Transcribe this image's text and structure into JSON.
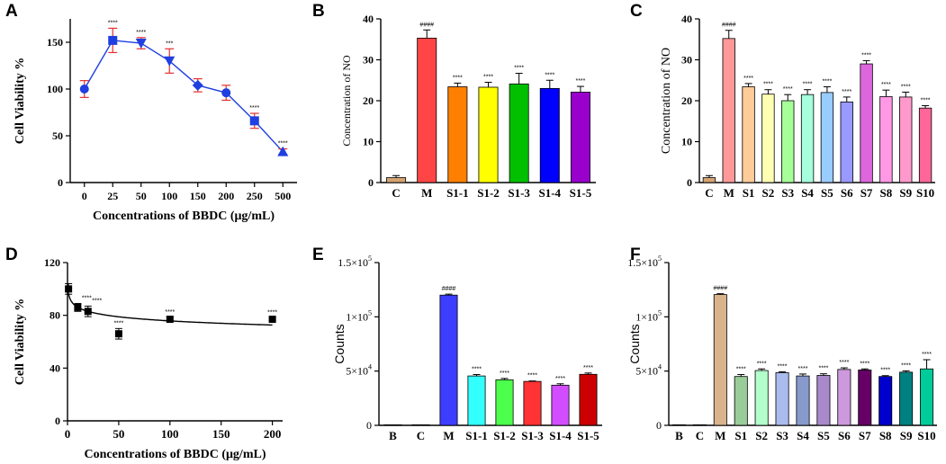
{
  "chart_data": [
    {
      "id": "A",
      "panel_label": "A",
      "type": "line",
      "scale": "categorical",
      "categories": [
        "0",
        "25",
        "50",
        "100",
        "150",
        "200",
        "250",
        "500"
      ],
      "values": [
        100,
        152,
        149,
        130,
        104,
        96,
        66,
        33
      ],
      "errors": [
        9,
        13,
        6,
        13,
        7,
        8,
        8,
        3
      ],
      "markers": [
        "circle",
        "square",
        "triangle-down",
        "triangle-down",
        "diamond",
        "circle",
        "square",
        "triangle-up"
      ],
      "sig": [
        "",
        "****",
        "****",
        "***",
        "",
        "",
        "****",
        "****"
      ],
      "xlabel": "Concentrations of BBDC (μg/mL)",
      "ylabel": "Cell Viability %",
      "ylim": [
        0,
        175
      ],
      "yticks": [
        "0",
        "50",
        "100",
        "150"
      ],
      "ytick_values": [
        0,
        50,
        100,
        150
      ],
      "color": "#1f3fe0",
      "error_color": "#e53030"
    },
    {
      "id": "B",
      "panel_label": "B",
      "type": "bar",
      "categories": [
        "C",
        "M",
        "S1-1",
        "S1-2",
        "S1-3",
        "S1-4",
        "S1-5"
      ],
      "values": [
        1.2,
        35.3,
        23.4,
        23.3,
        24.1,
        23.0,
        22.1
      ],
      "errors": [
        0.5,
        2.0,
        0.9,
        1.2,
        2.6,
        2.0,
        1.4
      ],
      "colors": [
        "#d4a373",
        "#ff4545",
        "#ff8000",
        "#ffff00",
        "#00c000",
        "#0000ff",
        "#9900cc"
      ],
      "labels": [
        "",
        "####",
        "****",
        "****",
        "****",
        "****",
        "****"
      ],
      "ylabel": "Concentration of NO",
      "ylim": [
        0,
        40
      ],
      "yticks": [
        "0",
        "10",
        "20",
        "30",
        "40"
      ],
      "ytick_values": [
        0,
        10,
        20,
        30,
        40
      ]
    },
    {
      "id": "C",
      "panel_label": "C",
      "type": "bar",
      "categories": [
        "C",
        "M",
        "S1",
        "S2",
        "S3",
        "S4",
        "S5",
        "S6",
        "S7",
        "S8",
        "S9",
        "S10"
      ],
      "values": [
        1.2,
        35.2,
        23.4,
        21.6,
        20.0,
        21.5,
        22.0,
        19.7,
        29.0,
        21.0,
        20.9,
        18.2
      ],
      "errors": [
        0.5,
        2.0,
        0.8,
        1.1,
        1.5,
        1.2,
        1.4,
        1.2,
        0.8,
        1.6,
        1.2,
        0.6
      ],
      "colors": [
        "#d4a373",
        "#ff9999",
        "#ffcc99",
        "#ffffb3",
        "#a6ff99",
        "#a6ffdd",
        "#99ccff",
        "#9999ff",
        "#dd66dd",
        "#ff99e6",
        "#ff99cc",
        "#ff6699"
      ],
      "labels": [
        "",
        "####",
        "****",
        "****",
        "****",
        "****",
        "****",
        "****",
        "****",
        "****",
        "****",
        "****"
      ],
      "ylabel": "Concentration of NO",
      "ylim": [
        0,
        40
      ],
      "yticks": [
        "0",
        "10",
        "20",
        "30",
        "40"
      ],
      "ytick_values": [
        0,
        10,
        20,
        30,
        40
      ]
    },
    {
      "id": "D",
      "panel_label": "D",
      "type": "scatter",
      "x": [
        1,
        10,
        20,
        50,
        100,
        200
      ],
      "values": [
        100,
        86,
        83,
        66,
        77,
        77
      ],
      "errors": [
        4,
        3,
        4,
        4,
        1.5,
        1
      ],
      "sig": [
        "",
        "****",
        "****",
        "****",
        "****",
        "****"
      ],
      "fit": {
        "type": "log",
        "a": 96.5,
        "b": -4.5
      },
      "xlabel": "Concentrations of BBDC (μg/mL)",
      "ylabel": "Cell Viability %",
      "xlim": [
        0,
        210
      ],
      "xticks": [
        "0",
        "50",
        "100",
        "150",
        "200"
      ],
      "xtick_values": [
        0,
        50,
        100,
        150,
        200
      ],
      "ylim": [
        0,
        120
      ],
      "yticks": [
        "0",
        "40",
        "80",
        "120"
      ],
      "ytick_values": [
        0,
        40,
        80,
        120
      ]
    },
    {
      "id": "E",
      "panel_label": "E",
      "type": "bar",
      "categories": [
        "B",
        "C",
        "M",
        "S1-1",
        "S1-2",
        "S1-3",
        "S1-4",
        "S1-5"
      ],
      "values": [
        500,
        300,
        120000,
        45500,
        42000,
        40500,
        37000,
        47000
      ],
      "errors": [
        0,
        0,
        900,
        1300,
        1200,
        400,
        1300,
        1200
      ],
      "colors": [
        "#ffffff",
        "#ffffff",
        "#3d3dff",
        "#33ffff",
        "#4dff4d",
        "#ff3333",
        "#d24dff",
        "#cc0000"
      ],
      "labels": [
        "",
        "",
        "####",
        "****",
        "****",
        "****",
        "****",
        "****"
      ],
      "ylabel": "Counts",
      "ylim": [
        0,
        150000
      ],
      "ytick_values": [
        0,
        50000,
        100000,
        150000
      ],
      "ytick_labels": [
        {
          "base": "0",
          "exp": ""
        },
        {
          "base": "5×10",
          "exp": "4"
        },
        {
          "base": "1×10",
          "exp": "5"
        },
        {
          "base": "1.5×10",
          "exp": "5"
        }
      ]
    },
    {
      "id": "F",
      "panel_label": "F",
      "type": "bar",
      "categories": [
        "B",
        "C",
        "M",
        "S1",
        "S2",
        "S3",
        "S4",
        "S5",
        "S6",
        "S7",
        "S8",
        "S9",
        "S10"
      ],
      "values": [
        500,
        300,
        120500,
        45000,
        50500,
        48500,
        45500,
        46000,
        51500,
        51000,
        45000,
        49000,
        52000
      ],
      "errors": [
        0,
        0,
        800,
        1800,
        1500,
        900,
        1800,
        1500,
        1500,
        1000,
        800,
        1200,
        8500
      ],
      "colors": [
        "#ffffff",
        "#ffffff",
        "#d9b38c",
        "#99cc99",
        "#b3ffcc",
        "#aabbee",
        "#8899cc",
        "#aa88cc",
        "#cc99dd",
        "#660066",
        "#0000cc",
        "#008080",
        "#00cc99"
      ],
      "labels": [
        "",
        "",
        "####",
        "****",
        "****",
        "****",
        "****",
        "****",
        "****",
        "****",
        "****",
        "****",
        "****"
      ],
      "ylabel": "Counts",
      "ylim": [
        0,
        150000
      ],
      "ytick_values": [
        0,
        50000,
        100000,
        150000
      ],
      "ytick_labels": [
        {
          "base": "0",
          "exp": ""
        },
        {
          "base": "5×10",
          "exp": "4"
        },
        {
          "base": "1×10",
          "exp": "5"
        },
        {
          "base": "1.5×10",
          "exp": "5"
        }
      ]
    }
  ]
}
